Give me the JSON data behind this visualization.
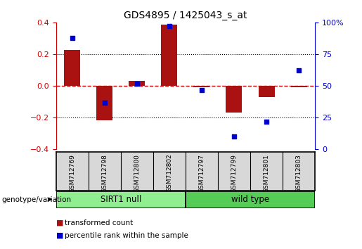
{
  "title": "GDS4895 / 1425043_s_at",
  "samples": [
    "GSM712769",
    "GSM712798",
    "GSM712800",
    "GSM712802",
    "GSM712797",
    "GSM712799",
    "GSM712801",
    "GSM712803"
  ],
  "red_bars": [
    0.225,
    -0.215,
    0.03,
    0.385,
    -0.01,
    -0.17,
    -0.07,
    -0.01
  ],
  "blue_dots": [
    88,
    37,
    52,
    97,
    47,
    10,
    22,
    62
  ],
  "groups": [
    {
      "label": "SIRT1 null",
      "start": 0,
      "end": 4,
      "color": "#90ee90"
    },
    {
      "label": "wild type",
      "start": 4,
      "end": 8,
      "color": "#55cc55"
    }
  ],
  "ylim_left": [
    -0.4,
    0.4
  ],
  "ylim_right": [
    0,
    100
  ],
  "yticks_left": [
    -0.4,
    -0.2,
    0.0,
    0.2,
    0.4
  ],
  "yticks_right": [
    0,
    25,
    50,
    75,
    100
  ],
  "ytick_labels_right": [
    "0",
    "25",
    "50",
    "75",
    "100%"
  ],
  "left_axis_color": "#cc0000",
  "right_axis_color": "#0000cc",
  "hline_color": "#cc0000",
  "dotted_line_color": "#000000",
  "bar_color": "#aa1111",
  "dot_color": "#0000cc",
  "legend_red_label": "transformed count",
  "legend_blue_label": "percentile rank within the sample",
  "group_label": "genotype/variation",
  "background_color": "#ffffff",
  "bar_width": 0.5,
  "dot_size": 22,
  "sample_box_color": "#d8d8d8"
}
